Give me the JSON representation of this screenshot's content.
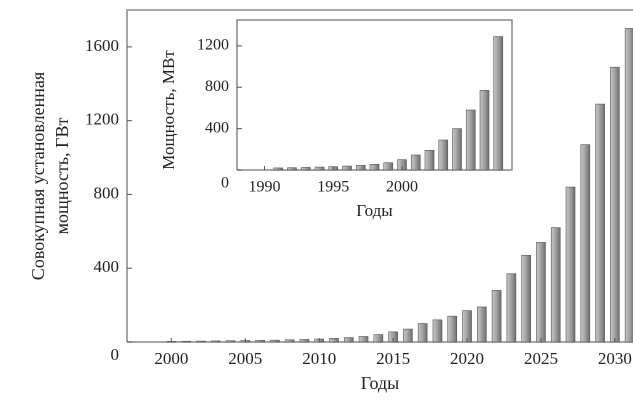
{
  "chart_data": [
    {
      "type": "bar",
      "xlabel": "Годы",
      "ylabel": [
        "Совокупная установленная",
        "мощность, ГВт"
      ],
      "x": [
        2000,
        2001,
        2002,
        2003,
        2004,
        2005,
        2006,
        2007,
        2008,
        2009,
        2010,
        2011,
        2012,
        2013,
        2014,
        2015,
        2016,
        2017,
        2018,
        2019,
        2020,
        2021,
        2022,
        2023,
        2024,
        2025,
        2026,
        2027,
        2028,
        2029,
        2030,
        2031
      ],
      "values": [
        3,
        4,
        5,
        6,
        7,
        8,
        9,
        10,
        12,
        14,
        16,
        20,
        24,
        30,
        40,
        55,
        70,
        100,
        120,
        140,
        170,
        190,
        280,
        370,
        470,
        540,
        620,
        840,
        1070,
        1290,
        1490,
        1700
      ],
      "color": "#9a9a9a",
      "xlim": [
        1997,
        2031.7
      ],
      "ylim": [
        0,
        1800
      ],
      "xticks": [
        2000,
        2005,
        2010,
        2015,
        2020,
        2025,
        2030
      ],
      "yticks": [
        0,
        400,
        800,
        1200,
        1600
      ]
    },
    {
      "type": "bar",
      "xlabel": "Годы",
      "ylabel": "Мощность, МВт",
      "x": [
        1991,
        1992,
        1993,
        1994,
        1995,
        1996,
        1997,
        1998,
        1999,
        2000,
        2001,
        2002,
        2003,
        2004,
        2005,
        2006,
        2007
      ],
      "values": [
        20,
        22,
        25,
        28,
        32,
        38,
        45,
        55,
        70,
        100,
        145,
        190,
        290,
        400,
        580,
        770,
        1290
      ],
      "color": "#9a9a9a",
      "xlim": [
        1988,
        2008
      ],
      "ylim": [
        0,
        1450
      ],
      "xticks": [
        1990,
        1995,
        2000
      ],
      "yticks": [
        0,
        400,
        800,
        1200
      ]
    }
  ]
}
